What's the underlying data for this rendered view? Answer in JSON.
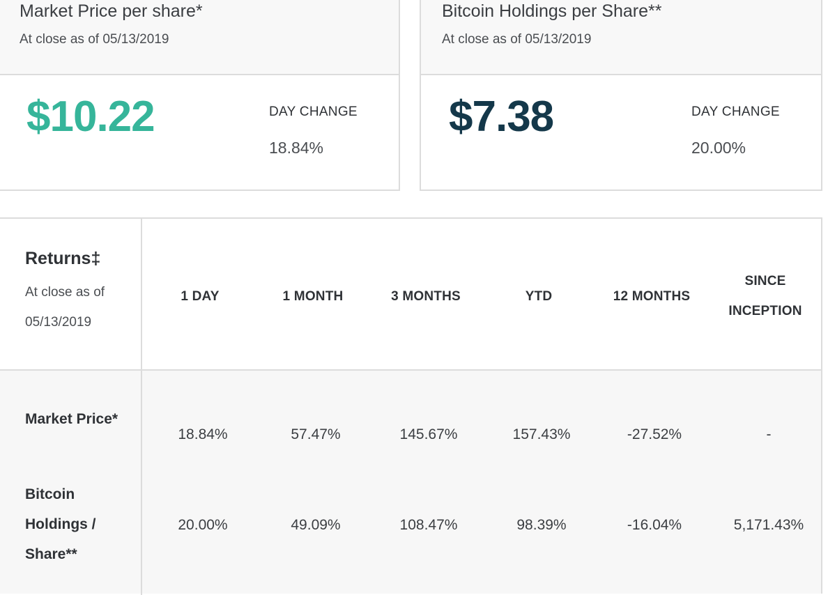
{
  "cards": {
    "market": {
      "title": "Market Price per share*",
      "as_of": "At close as of 05/13/2019",
      "price": "$10.22",
      "day_change_label": "DAY CHANGE",
      "day_change_value": "18.84%",
      "price_color": "#36b59a"
    },
    "bitcoin": {
      "title": "Bitcoin Holdings per Share**",
      "as_of": "At close as of 05/13/2019",
      "price": "$7.38",
      "day_change_label": "DAY CHANGE",
      "day_change_value": "20.00%",
      "price_color": "#14384a"
    }
  },
  "returns": {
    "title": "Returns‡",
    "as_of": "At close as of 05/13/2019",
    "columns": [
      "1 DAY",
      "1 MONTH",
      "3 MONTHS",
      "YTD",
      "12 MONTHS",
      "SINCE INCEPTION"
    ],
    "rows": [
      {
        "label": "Market Price*",
        "values": [
          "18.84%",
          "57.47%",
          "145.67%",
          "157.43%",
          "-27.52%",
          "-"
        ]
      },
      {
        "label": "Bitcoin Holdings / Share**",
        "values": [
          "20.00%",
          "49.09%",
          "108.47%",
          "98.39%",
          "-16.04%",
          "5,171.43%"
        ]
      }
    ]
  }
}
